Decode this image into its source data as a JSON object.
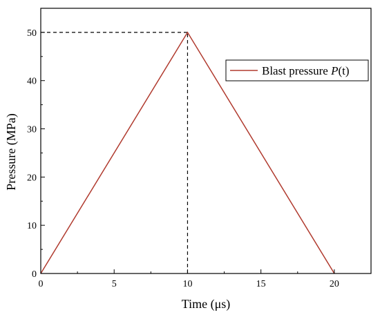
{
  "chart_data": {
    "type": "line",
    "title": "",
    "xlabel": "Time (μs)",
    "ylabel": "Pressure (MPa)",
    "xlim": [
      0,
      22.5
    ],
    "ylim": [
      0,
      55
    ],
    "xticks": [
      0,
      5,
      10,
      15,
      20
    ],
    "yticks": [
      0,
      10,
      20,
      30,
      40,
      50
    ],
    "x_tick_labels": [
      "0",
      "5",
      "10",
      "15",
      "20"
    ],
    "y_tick_labels": [
      "0",
      "10",
      "20",
      "30",
      "40",
      "50"
    ],
    "series": [
      {
        "name": "Blast pressure P(t)",
        "color": "#b03a2e",
        "x": [
          0,
          10,
          20
        ],
        "y": [
          0,
          50,
          0
        ]
      }
    ],
    "reference_lines": [
      {
        "style": "dashed",
        "x": [
          0,
          10
        ],
        "y": [
          50,
          50
        ]
      },
      {
        "style": "dashed",
        "x": [
          10,
          10
        ],
        "y": [
          0,
          50
        ]
      }
    ],
    "legend": {
      "position": "top-right",
      "label_prefix": "Blast pressure ",
      "label_italic": "P",
      "label_suffix": "(t)"
    },
    "grid": false
  }
}
